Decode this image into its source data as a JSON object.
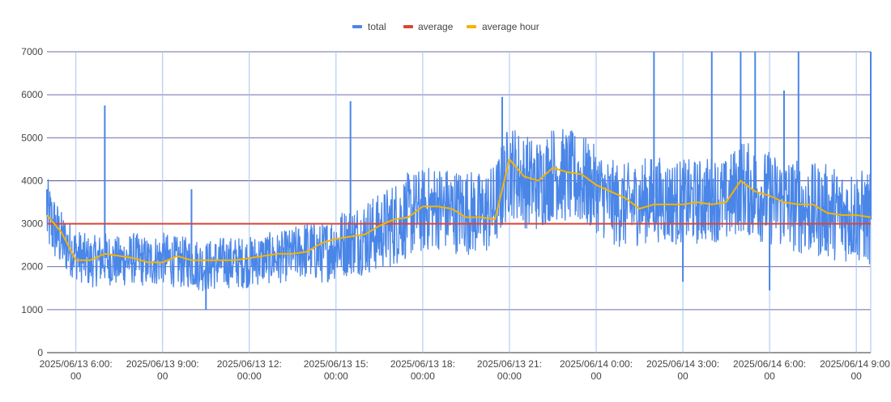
{
  "chart_data": {
    "type": "line",
    "title": "",
    "xlabel": "",
    "ylabel": "",
    "ylim": [
      0,
      7000
    ],
    "yticks": [
      0,
      1000,
      2000,
      3000,
      4000,
      5000,
      6000,
      7000
    ],
    "xlim": [
      "2025/06/13 05:00:00",
      "2025/06/14 09:30:00"
    ],
    "xticks": [
      {
        "time": "2025/06/13 06:00:00",
        "line1": "2025/06/13 6:00:",
        "line2": "00"
      },
      {
        "time": "2025/06/13 09:00:00",
        "line1": "2025/06/13 9:00:",
        "line2": "00"
      },
      {
        "time": "2025/06/13 12:00:00",
        "line1": "2025/06/13 12:",
        "line2": "00:00"
      },
      {
        "time": "2025/06/13 15:00:00",
        "line1": "2025/06/13 15:",
        "line2": "00:00"
      },
      {
        "time": "2025/06/13 18:00:00",
        "line1": "2025/06/13 18:",
        "line2": "00:00"
      },
      {
        "time": "2025/06/13 21:00:00",
        "line1": "2025/06/13 21:",
        "line2": "00:00"
      },
      {
        "time": "2025/06/14 00:00:00",
        "line1": "2025/06/14 0:00:",
        "line2": "00"
      },
      {
        "time": "2025/06/14 03:00:00",
        "line1": "2025/06/14 3:00:",
        "line2": "00"
      },
      {
        "time": "2025/06/14 06:00:00",
        "line1": "2025/06/14 6:00:",
        "line2": "00"
      },
      {
        "time": "2025/06/14 09:00:00",
        "line1": "2025/06/14 9:00:",
        "line2": "00"
      }
    ],
    "grid": true,
    "legend_position": "top",
    "series": [
      {
        "name": "total",
        "color": "#4a86e8",
        "x": [
          "2025/06/13 05:00",
          "2025/06/13 05:30",
          "2025/06/13 06:00",
          "2025/06/13 06:30",
          "2025/06/13 07:00",
          "2025/06/13 07:30",
          "2025/06/13 08:00",
          "2025/06/13 08:30",
          "2025/06/13 09:00",
          "2025/06/13 09:30",
          "2025/06/13 10:00",
          "2025/06/13 10:30",
          "2025/06/13 11:00",
          "2025/06/13 11:30",
          "2025/06/13 12:00",
          "2025/06/13 12:30",
          "2025/06/13 13:00",
          "2025/06/13 13:30",
          "2025/06/13 14:00",
          "2025/06/13 14:30",
          "2025/06/13 15:00",
          "2025/06/13 15:30",
          "2025/06/13 16:00",
          "2025/06/13 16:30",
          "2025/06/13 17:00",
          "2025/06/13 17:30",
          "2025/06/13 18:00",
          "2025/06/13 18:30",
          "2025/06/13 19:00",
          "2025/06/13 19:30",
          "2025/06/13 20:00",
          "2025/06/13 20:30",
          "2025/06/13 21:00",
          "2025/06/13 21:30",
          "2025/06/13 22:00",
          "2025/06/13 22:30",
          "2025/06/13 23:00",
          "2025/06/13 23:30",
          "2025/06/14 00:00",
          "2025/06/14 00:30",
          "2025/06/14 01:00",
          "2025/06/14 01:30",
          "2025/06/14 02:00",
          "2025/06/14 02:30",
          "2025/06/14 03:00",
          "2025/06/14 03:30",
          "2025/06/14 04:00",
          "2025/06/14 04:30",
          "2025/06/14 05:00",
          "2025/06/14 05:30",
          "2025/06/14 06:00",
          "2025/06/14 06:30",
          "2025/06/14 07:00",
          "2025/06/14 07:30",
          "2025/06/14 08:00",
          "2025/06/14 08:30",
          "2025/06/14 09:00",
          "2025/06/14 09:30"
        ],
        "values": [
          3200,
          2600,
          2300,
          2100,
          2200,
          2100,
          2200,
          2100,
          2200,
          2100,
          2100,
          2000,
          2100,
          2100,
          2100,
          2200,
          2200,
          2300,
          2400,
          2300,
          2500,
          2600,
          2700,
          2800,
          3000,
          3200,
          3300,
          3400,
          3300,
          3300,
          3200,
          3400,
          4300,
          4000,
          3900,
          4200,
          4100,
          4000,
          3800,
          3500,
          3400,
          3500,
          3600,
          3500,
          3500,
          3500,
          3600,
          3500,
          3900,
          3700,
          3600,
          3500,
          3400,
          3300,
          3300,
          3200,
          3200,
          3100
        ],
        "spread": [
          900,
          700,
          600,
          600,
          600,
          600,
          600,
          600,
          600,
          600,
          600,
          600,
          600,
          600,
          600,
          600,
          600,
          600,
          700,
          700,
          800,
          800,
          900,
          900,
          1000,
          1000,
          1000,
          1000,
          1000,
          1000,
          1000,
          1000,
          1100,
          1100,
          1100,
          1100,
          1100,
          1100,
          1000,
          1000,
          1000,
          1000,
          1000,
          1000,
          1000,
          1000,
          1000,
          1000,
          1100,
          1100,
          1100,
          1100,
          1100,
          1100,
          1100,
          1100,
          1100,
          1100
        ],
        "spikes": [
          {
            "x": "2025/06/13 05:00",
            "y": 3800
          },
          {
            "x": "2025/06/13 07:00",
            "y": 5750
          },
          {
            "x": "2025/06/13 10:00",
            "y": 3800
          },
          {
            "x": "2025/06/13 10:30",
            "y": 1000
          },
          {
            "x": "2025/06/13 15:30",
            "y": 5850
          },
          {
            "x": "2025/06/13 20:45",
            "y": 5950
          },
          {
            "x": "2025/06/14 02:00",
            "y": 7000
          },
          {
            "x": "2025/06/14 03:00",
            "y": 1650
          },
          {
            "x": "2025/06/14 04:00",
            "y": 7000
          },
          {
            "x": "2025/06/14 05:00",
            "y": 7000
          },
          {
            "x": "2025/06/14 05:30",
            "y": 7000
          },
          {
            "x": "2025/06/14 06:00",
            "y": 1450
          },
          {
            "x": "2025/06/14 06:30",
            "y": 6100
          },
          {
            "x": "2025/06/14 07:00",
            "y": 7000
          },
          {
            "x": "2025/06/14 09:30",
            "y": 7000
          }
        ]
      },
      {
        "name": "average",
        "color": "#db4437",
        "x": [
          "2025/06/13 05:00",
          "2025/06/14 09:30"
        ],
        "values": [
          3000,
          3000
        ]
      },
      {
        "name": "average hour",
        "color": "#f4b400",
        "x": [
          "2025/06/13 05:00",
          "2025/06/13 05:30",
          "2025/06/13 06:00",
          "2025/06/13 06:30",
          "2025/06/13 07:00",
          "2025/06/13 07:30",
          "2025/06/13 08:00",
          "2025/06/13 08:30",
          "2025/06/13 09:00",
          "2025/06/13 09:30",
          "2025/06/13 10:00",
          "2025/06/13 10:30",
          "2025/06/13 11:00",
          "2025/06/13 11:30",
          "2025/06/13 12:00",
          "2025/06/13 12:30",
          "2025/06/13 13:00",
          "2025/06/13 13:30",
          "2025/06/13 14:00",
          "2025/06/13 14:30",
          "2025/06/13 15:00",
          "2025/06/13 15:30",
          "2025/06/13 16:00",
          "2025/06/13 16:30",
          "2025/06/13 17:00",
          "2025/06/13 17:30",
          "2025/06/13 18:00",
          "2025/06/13 18:30",
          "2025/06/13 19:00",
          "2025/06/13 19:30",
          "2025/06/13 20:00",
          "2025/06/13 20:30",
          "2025/06/13 21:00",
          "2025/06/13 21:30",
          "2025/06/13 22:00",
          "2025/06/13 22:30",
          "2025/06/13 23:00",
          "2025/06/13 23:30",
          "2025/06/14 00:00",
          "2025/06/14 00:30",
          "2025/06/14 01:00",
          "2025/06/14 01:30",
          "2025/06/14 02:00",
          "2025/06/14 02:30",
          "2025/06/14 03:00",
          "2025/06/14 03:30",
          "2025/06/14 04:00",
          "2025/06/14 04:30",
          "2025/06/14 05:00",
          "2025/06/14 05:30",
          "2025/06/14 06:00",
          "2025/06/14 06:30",
          "2025/06/14 07:00",
          "2025/06/14 07:30",
          "2025/06/14 08:00",
          "2025/06/14 08:30",
          "2025/06/14 09:00",
          "2025/06/14 09:30"
        ],
        "values": [
          3200,
          2800,
          2150,
          2150,
          2300,
          2250,
          2200,
          2100,
          2100,
          2250,
          2150,
          2150,
          2150,
          2150,
          2200,
          2250,
          2300,
          2300,
          2350,
          2550,
          2650,
          2700,
          2750,
          2950,
          3100,
          3150,
          3400,
          3400,
          3350,
          3150,
          3150,
          3100,
          4500,
          4100,
          4000,
          4300,
          4200,
          4150,
          3900,
          3750,
          3600,
          3350,
          3450,
          3450,
          3450,
          3500,
          3450,
          3500,
          4000,
          3750,
          3650,
          3500,
          3450,
          3450,
          3250,
          3200,
          3200,
          3150
        ]
      }
    ]
  }
}
